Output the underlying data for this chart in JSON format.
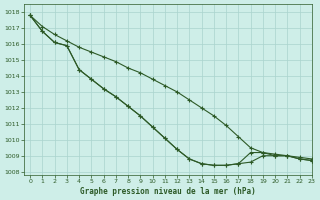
{
  "title": "Graphe pression niveau de la mer (hPa)",
  "background_color": "#ceeee8",
  "grid_color": "#aad4ce",
  "line_color": "#2d5a27",
  "xlim": [
    -0.5,
    23
  ],
  "ylim": [
    1007.8,
    1018.5
  ],
  "yticks": [
    1008,
    1009,
    1010,
    1011,
    1012,
    1013,
    1014,
    1015,
    1016,
    1017,
    1018
  ],
  "xticks": [
    0,
    1,
    2,
    3,
    4,
    5,
    6,
    7,
    8,
    9,
    10,
    11,
    12,
    13,
    14,
    15,
    16,
    17,
    18,
    19,
    20,
    21,
    22,
    23
  ],
  "series": [
    [
      1017.8,
      1017.1,
      1016.6,
      1016.2,
      1015.8,
      1015.5,
      1015.2,
      1014.9,
      1014.5,
      1014.2,
      1013.8,
      1013.4,
      1013.0,
      1012.5,
      1012.0,
      1011.5,
      1010.9,
      1010.2,
      1009.5,
      1009.2,
      1009.1,
      1009.0,
      1008.9,
      1008.8
    ],
    [
      1017.8,
      1016.8,
      1016.1,
      1015.9,
      1014.4,
      1013.8,
      1013.2,
      1012.7,
      1012.1,
      1011.5,
      1010.8,
      1010.1,
      1009.4,
      1008.8,
      1008.5,
      1008.4,
      1008.4,
      1008.5,
      1008.6,
      1009.0,
      1009.0,
      1009.0,
      1008.8,
      1008.7
    ],
    [
      1017.8,
      1016.8,
      1016.1,
      1015.9,
      1014.4,
      1013.8,
      1013.2,
      1012.7,
      1012.1,
      1011.5,
      1010.8,
      1010.1,
      1009.4,
      1008.8,
      1008.5,
      1008.4,
      1008.4,
      1008.5,
      1009.2,
      1009.2,
      1009.0,
      1009.0,
      1008.8,
      1008.7
    ]
  ]
}
